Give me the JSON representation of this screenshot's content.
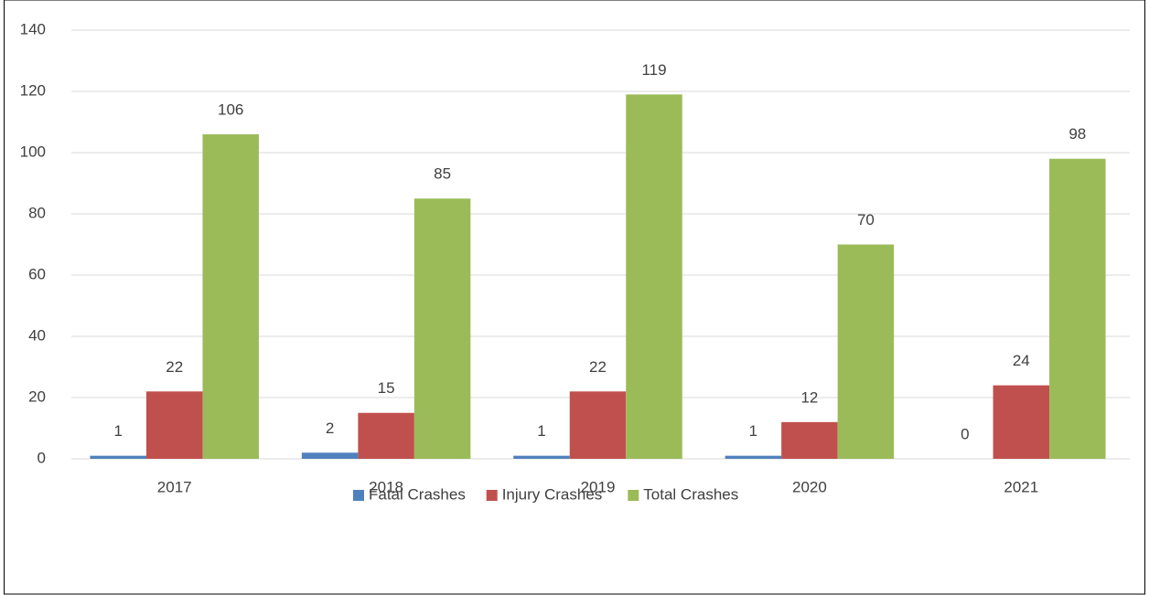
{
  "chart_data": {
    "type": "bar",
    "categories": [
      "2017",
      "2018",
      "2019",
      "2020",
      "2021"
    ],
    "series": [
      {
        "name": "Fatal Crashes",
        "color": "#4f81bd",
        "values": [
          1,
          2,
          1,
          1,
          0
        ]
      },
      {
        "name": "Injury Crashes",
        "color": "#c0504d",
        "values": [
          22,
          15,
          22,
          12,
          24
        ]
      },
      {
        "name": "Total Crashes",
        "color": "#9bbb59",
        "values": [
          106,
          85,
          119,
          70,
          98
        ]
      }
    ],
    "ylim": [
      0,
      140
    ],
    "yticks": [
      0,
      20,
      40,
      60,
      80,
      100,
      120,
      140
    ],
    "grid": true,
    "legend": "bottom"
  }
}
